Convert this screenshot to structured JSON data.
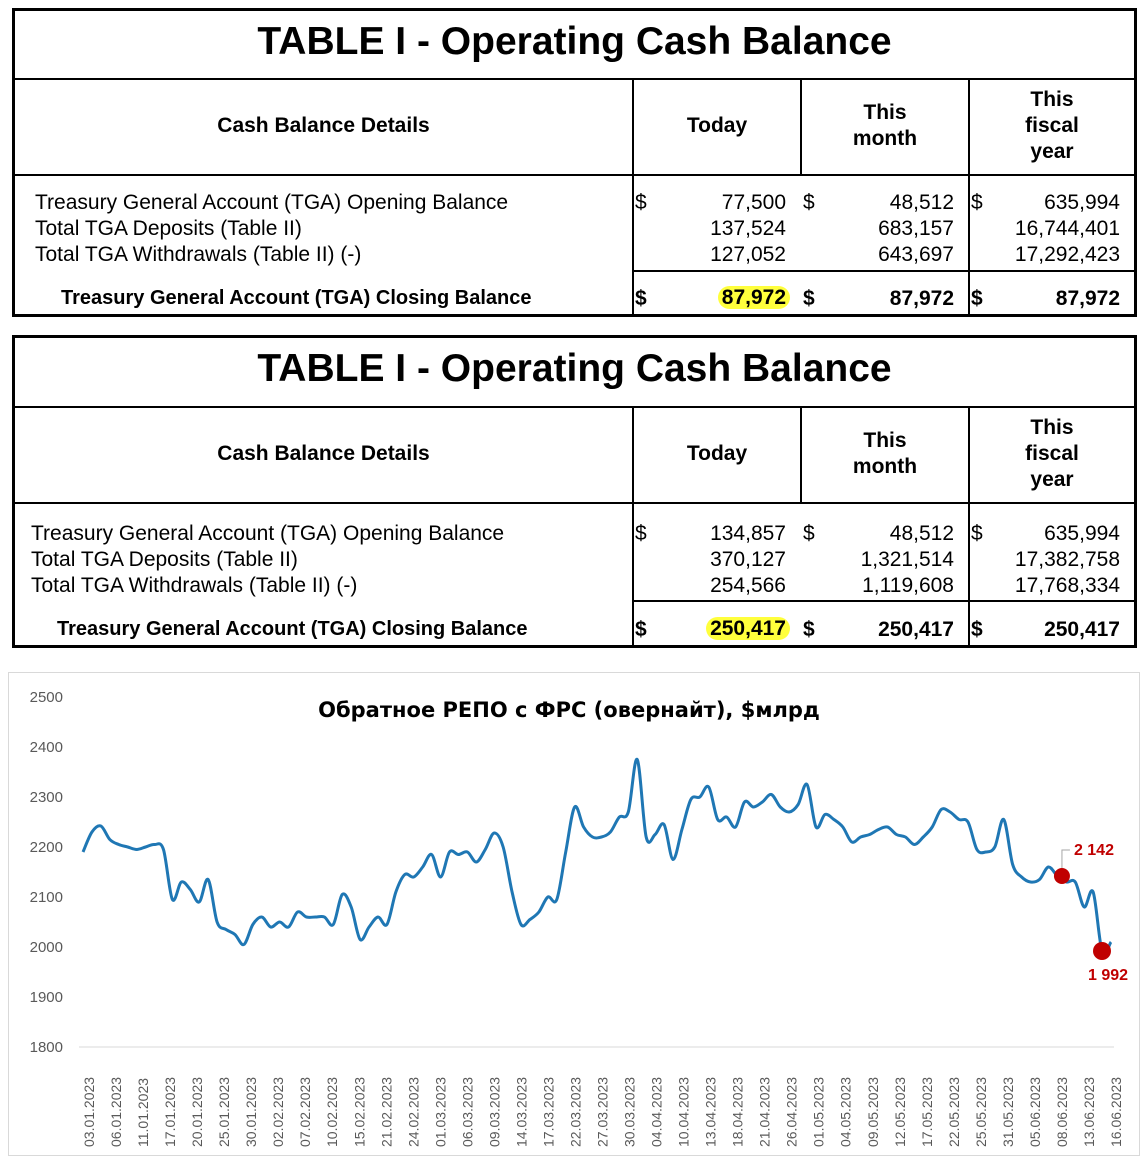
{
  "tables": [
    {
      "title": "TABLE I - Operating Cash Balance",
      "headers": {
        "details": "Cash Balance Details",
        "today": "Today",
        "month": "This month",
        "fiscal": "This fiscal year"
      },
      "rows": [
        {
          "label": "Treasury General Account (TGA) Opening Balance",
          "today": "77,500",
          "month": "48,512",
          "fiscal": "635,994",
          "dollar": true
        },
        {
          "label": "Total TGA Deposits (Table II)",
          "today": "137,524",
          "month": "683,157",
          "fiscal": "16,744,401",
          "dollar": false
        },
        {
          "label": "Total TGA Withdrawals (Table II) (-)",
          "today": "127,052",
          "month": "643,697",
          "fiscal": "17,292,423",
          "dollar": false
        }
      ],
      "closing": {
        "label": "Treasury General Account (TGA) Closing Balance",
        "today": "87,972",
        "month": "87,972",
        "fiscal": "87,972"
      },
      "currency": "$"
    },
    {
      "title": "TABLE I - Operating Cash Balance",
      "headers": {
        "details": "Cash Balance Details",
        "today": "Today",
        "month": "This month",
        "fiscal": "This fiscal year"
      },
      "rows": [
        {
          "label": "Treasury General Account (TGA) Opening Balance",
          "today": "134,857",
          "month": "48,512",
          "fiscal": "635,994",
          "dollar": true
        },
        {
          "label": "Total TGA Deposits (Table II)",
          "today": "370,127",
          "month": "1,321,514",
          "fiscal": "17,382,758",
          "dollar": false
        },
        {
          "label": "Total TGA Withdrawals (Table II) (-)",
          "today": "254,566",
          "month": "1,119,608",
          "fiscal": "17,768,334",
          "dollar": false
        }
      ],
      "closing": {
        "label": "Treasury General Account (TGA) Closing Balance",
        "today": "250,417",
        "month": "250,417",
        "fiscal": "250,417"
      },
      "currency": "$"
    }
  ],
  "colors": {
    "highlight": "#ffff3c",
    "line": "#1f77b4",
    "marker": "#c00000"
  },
  "chart_data": {
    "type": "line",
    "title": "Обратное РЕПО с ФРС (овернайт), $млрд",
    "ylim": [
      1800,
      2500
    ],
    "yticks": [
      1800,
      1900,
      2000,
      2100,
      2200,
      2300,
      2400,
      2500
    ],
    "xtick_labels": [
      "03.01.2023",
      "06.01.2023",
      "11.01.2023",
      "17.01.2023",
      "20.01.2023",
      "25.01.2023",
      "30.01.2023",
      "02.02.2023",
      "07.02.2023",
      "10.02.2023",
      "15.02.2023",
      "21.02.2023",
      "24.02.2023",
      "01.03.2023",
      "06.03.2023",
      "09.03.2023",
      "14.03.2023",
      "17.03.2023",
      "22.03.2023",
      "27.03.2023",
      "30.03.2023",
      "04.04.2023",
      "10.04.2023",
      "13.04.2023",
      "18.04.2023",
      "21.04.2023",
      "26.04.2023",
      "01.05.2023",
      "04.05.2023",
      "09.05.2023",
      "12.05.2023",
      "17.05.2023",
      "22.05.2023",
      "25.05.2023",
      "31.05.2023",
      "05.06.2023",
      "08.06.2023",
      "13.06.2023",
      "16.06.2023"
    ],
    "values": [
      2190,
      2230,
      2242,
      2215,
      2205,
      2200,
      2195,
      2200,
      2205,
      2195,
      2095,
      2130,
      2115,
      2090,
      2135,
      2050,
      2035,
      2025,
      2005,
      2045,
      2060,
      2040,
      2050,
      2040,
      2070,
      2060,
      2060,
      2060,
      2045,
      2105,
      2080,
      2015,
      2040,
      2060,
      2045,
      2110,
      2145,
      2140,
      2160,
      2185,
      2140,
      2190,
      2185,
      2190,
      2170,
      2195,
      2228,
      2200,
      2110,
      2045,
      2055,
      2070,
      2100,
      2095,
      2190,
      2280,
      2240,
      2220,
      2220,
      2230,
      2260,
      2270,
      2375,
      2220,
      2225,
      2245,
      2175,
      2235,
      2295,
      2300,
      2320,
      2255,
      2260,
      2240,
      2290,
      2280,
      2290,
      2305,
      2280,
      2270,
      2285,
      2325,
      2240,
      2265,
      2255,
      2240,
      2210,
      2220,
      2225,
      2235,
      2240,
      2225,
      2220,
      2205,
      2220,
      2240,
      2275,
      2270,
      2255,
      2250,
      2195,
      2190,
      2200,
      2255,
      2165,
      2140,
      2130,
      2135,
      2160,
      2142,
      2130,
      2130,
      2080,
      2110,
      1992,
      2010
    ],
    "annotations": [
      {
        "label": "2 142",
        "value": 2142,
        "x_label": "08.06.2023"
      },
      {
        "label": "1 992",
        "value": 1992,
        "x_label": "16.06.2023"
      }
    ],
    "grid": false,
    "legend": "none"
  }
}
